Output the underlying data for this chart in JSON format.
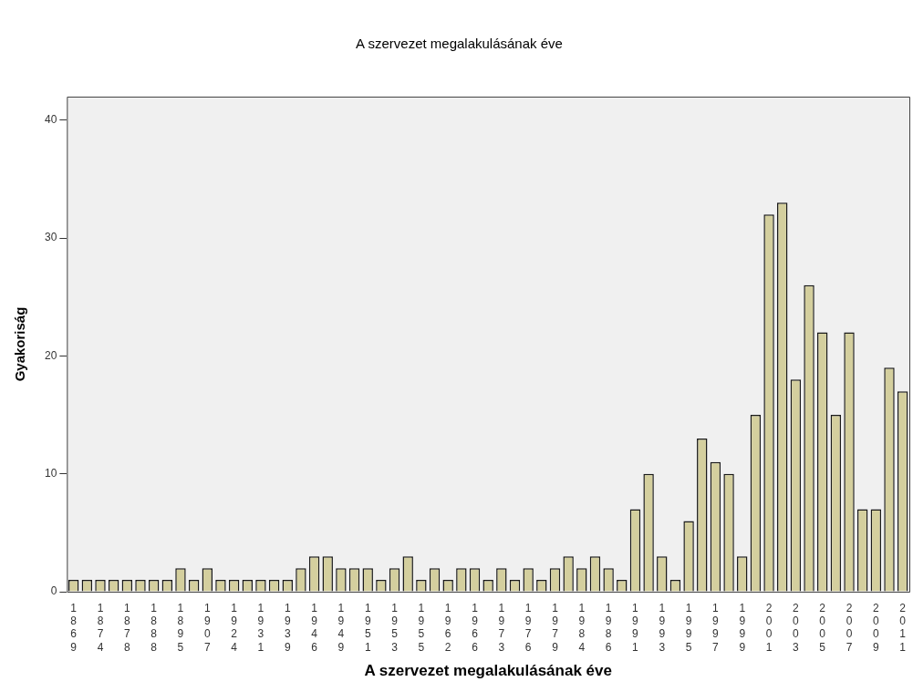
{
  "chart_data": {
    "type": "bar",
    "title": "A szervezet megalakulásának éve",
    "xlabel": "A szervezet megalakulásának éve",
    "ylabel": "Gyakoriság",
    "categories": [
      "1869",
      null,
      "1874",
      null,
      "1878",
      null,
      "1888",
      null,
      "1895",
      null,
      "1907",
      null,
      "1924",
      null,
      "1931",
      null,
      "1939",
      null,
      "1946",
      null,
      "1949",
      null,
      "1951",
      null,
      "1953",
      null,
      "1955",
      null,
      "1962",
      null,
      "1966",
      null,
      "1973",
      null,
      "1976",
      null,
      "1979",
      null,
      "1984",
      null,
      "1986",
      null,
      "1991",
      null,
      "1993",
      null,
      "1995",
      null,
      "1997",
      null,
      "1999",
      null,
      "2001",
      null,
      "2003",
      null,
      "2005",
      null,
      "2007",
      null,
      "2009",
      null,
      "2011"
    ],
    "values": [
      1,
      1,
      1,
      1,
      1,
      1,
      1,
      1,
      2,
      1,
      2,
      1,
      1,
      1,
      1,
      1,
      1,
      2,
      3,
      3,
      2,
      2,
      2,
      1,
      2,
      3,
      1,
      2,
      1,
      2,
      2,
      1,
      2,
      1,
      2,
      1,
      2,
      3,
      2,
      3,
      2,
      1,
      7,
      10,
      3,
      1,
      6,
      13,
      11,
      10,
      3,
      15,
      32,
      33,
      18,
      26,
      22,
      15,
      22,
      7,
      7,
      19,
      17
    ],
    "color": "#d4cf9e",
    "ylim": [
      0,
      42
    ],
    "yticks": [
      0,
      10,
      20,
      30,
      40
    ],
    "grid": false,
    "legend": false
  }
}
